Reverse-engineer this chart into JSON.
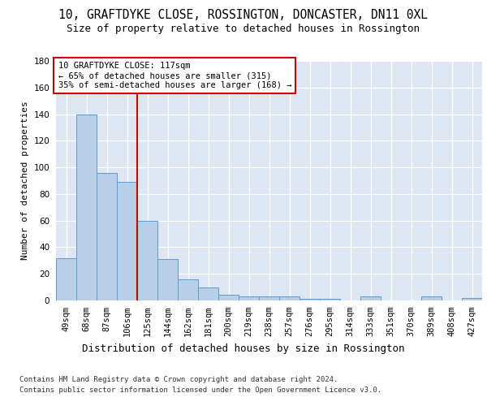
{
  "title1": "10, GRAFTDYKE CLOSE, ROSSINGTON, DONCASTER, DN11 0XL",
  "title2": "Size of property relative to detached houses in Rossington",
  "xlabel": "Distribution of detached houses by size in Rossington",
  "ylabel": "Number of detached properties",
  "categories": [
    "49sqm",
    "68sqm",
    "87sqm",
    "106sqm",
    "125sqm",
    "144sqm",
    "162sqm",
    "181sqm",
    "200sqm",
    "219sqm",
    "238sqm",
    "257sqm",
    "276sqm",
    "295sqm",
    "314sqm",
    "333sqm",
    "351sqm",
    "370sqm",
    "389sqm",
    "408sqm",
    "427sqm"
  ],
  "values": [
    32,
    140,
    96,
    89,
    60,
    31,
    16,
    10,
    4,
    3,
    3,
    3,
    1,
    1,
    0,
    3,
    0,
    0,
    3,
    0,
    2
  ],
  "bar_color": "#b8cfe8",
  "bar_edge_color": "#5b9bd5",
  "vline_x": 3.5,
  "vline_color": "#cc0000",
  "ann_line1": "10 GRAFTDYKE CLOSE: 117sqm",
  "ann_line2": "← 65% of detached houses are smaller (315)",
  "ann_line3": "35% of semi-detached houses are larger (168) →",
  "annotation_box_facecolor": "#ffffff",
  "annotation_box_edgecolor": "#cc0000",
  "ylim": [
    0,
    180
  ],
  "yticks": [
    0,
    20,
    40,
    60,
    80,
    100,
    120,
    140,
    160,
    180
  ],
  "bg_color": "#dde6f2",
  "footer_line1": "Contains HM Land Registry data © Crown copyright and database right 2024.",
  "footer_line2": "Contains public sector information licensed under the Open Government Licence v3.0.",
  "title1_fontsize": 10.5,
  "title2_fontsize": 9,
  "ylabel_fontsize": 8,
  "tick_fontsize": 7.5,
  "ann_fontsize": 7.5,
  "xlabel_fontsize": 9,
  "footer_fontsize": 6.5
}
